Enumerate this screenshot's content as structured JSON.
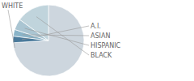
{
  "chart_data": {
    "type": "pie",
    "categories": [
      "WHITE",
      "A.I.",
      "ASIAN",
      "HISPANIC",
      "BLACK"
    ],
    "values": [
      74,
      3,
      3,
      5,
      15
    ],
    "colors": [
      "#cdd6de",
      "#4a7a9b",
      "#8ab4c8",
      "#aac5d2",
      "#c0d4dc"
    ]
  }
}
